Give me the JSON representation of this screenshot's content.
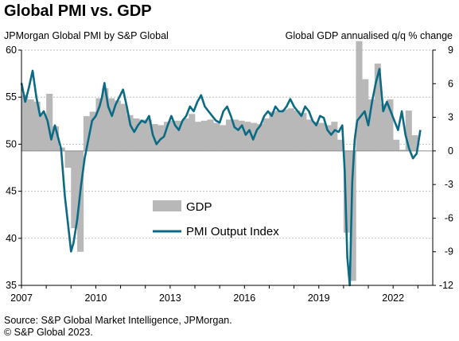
{
  "header": {
    "title": "Global PMI vs. GDP",
    "left_axis_label": "JPMorgan Global PMI by S&P Global",
    "right_axis_label": "Global GDP annualised q/q % change"
  },
  "footer": {
    "source_line1": "Source: S&P Global Market Intelligence, JPMorgan.",
    "source_line2": "© S&P Global 2023."
  },
  "chart_data": {
    "type": "bar+line",
    "title": "Global PMI vs. GDP",
    "xlabel": "",
    "ylabel_left": "JPMorgan Global PMI by S&P Global",
    "ylabel_right": "Global GDP annualised q/q % change",
    "ylim_left": [
      35,
      60
    ],
    "ylim_right": [
      -12,
      9
    ],
    "xlim": [
      2007.0,
      2023.6
    ],
    "x_ticks": [
      "2007",
      "2010",
      "2013",
      "2016",
      "2019",
      "2022"
    ],
    "y_left_ticks": [
      "35",
      "40",
      "45",
      "50",
      "55",
      "60"
    ],
    "y_right_ticks": [
      "-12",
      "-9",
      "-6",
      "-3",
      "0",
      "3",
      "6",
      "9"
    ],
    "legend": {
      "placement": "center",
      "entries": [
        "GDP",
        "PMI Output Index"
      ]
    },
    "colors": {
      "gdp": "#b8b8b8",
      "pmi": "#0b6b85",
      "grid": "#bfbfbf",
      "axis": "#000000"
    },
    "series": [
      {
        "name": "GDP",
        "type": "bar",
        "axis": "right",
        "x": [
          2007.0,
          2007.25,
          2007.5,
          2007.75,
          2008.0,
          2008.25,
          2008.5,
          2008.75,
          2009.0,
          2009.25,
          2009.5,
          2009.75,
          2010.0,
          2010.25,
          2010.5,
          2010.75,
          2011.0,
          2011.25,
          2011.5,
          2011.75,
          2012.0,
          2012.25,
          2012.5,
          2012.75,
          2013.0,
          2013.25,
          2013.5,
          2013.75,
          2014.0,
          2014.25,
          2014.5,
          2014.75,
          2015.0,
          2015.25,
          2015.5,
          2015.75,
          2016.0,
          2016.25,
          2016.5,
          2016.75,
          2017.0,
          2017.25,
          2017.5,
          2017.75,
          2018.0,
          2018.25,
          2018.5,
          2018.75,
          2019.0,
          2019.25,
          2019.5,
          2019.75,
          2020.0,
          2020.25,
          2020.5,
          2020.75,
          2021.0,
          2021.25,
          2021.5,
          2021.75,
          2022.0,
          2022.25,
          2022.5,
          2022.75
        ],
        "values": [
          5.0,
          4.6,
          4.4,
          3.3,
          5.1,
          2.2,
          0.3,
          -1.5,
          -6.9,
          -9.0,
          3.1,
          3.5,
          4.7,
          5.6,
          4.7,
          4.5,
          4.2,
          3.2,
          2.9,
          2.8,
          2.8,
          2.4,
          2.3,
          2.6,
          2.7,
          2.7,
          2.9,
          3.3,
          2.6,
          2.7,
          2.8,
          2.5,
          2.3,
          2.8,
          2.8,
          2.7,
          2.6,
          2.5,
          2.4,
          2.9,
          3.5,
          3.6,
          3.7,
          3.8,
          3.6,
          3.4,
          2.8,
          2.6,
          2.5,
          2.3,
          2.6,
          1.0,
          -7.3,
          -11.6,
          9.8,
          6.4,
          4.6,
          7.8,
          4.2,
          4.6,
          1.0,
          0.1,
          3.6,
          1.4
        ]
      },
      {
        "name": "PMI Output Index",
        "type": "line",
        "axis": "left",
        "x": [
          2007.0,
          2007.15,
          2007.3,
          2007.45,
          2007.6,
          2007.75,
          2007.9,
          2008.05,
          2008.2,
          2008.35,
          2008.5,
          2008.6,
          2008.75,
          2008.9,
          2009.0,
          2009.1,
          2009.25,
          2009.4,
          2009.55,
          2009.7,
          2009.85,
          2010.0,
          2010.15,
          2010.25,
          2010.35,
          2010.5,
          2010.65,
          2010.8,
          2010.95,
          2011.1,
          2011.25,
          2011.4,
          2011.55,
          2011.7,
          2011.85,
          2012.0,
          2012.15,
          2012.3,
          2012.45,
          2012.6,
          2012.75,
          2012.9,
          2013.05,
          2013.2,
          2013.35,
          2013.5,
          2013.65,
          2013.8,
          2013.95,
          2014.1,
          2014.25,
          2014.4,
          2014.55,
          2014.7,
          2014.85,
          2015.0,
          2015.15,
          2015.3,
          2015.45,
          2015.6,
          2015.75,
          2015.9,
          2016.05,
          2016.2,
          2016.35,
          2016.5,
          2016.65,
          2016.8,
          2016.95,
          2017.1,
          2017.25,
          2017.4,
          2017.55,
          2017.7,
          2017.85,
          2018.0,
          2018.15,
          2018.3,
          2018.45,
          2018.6,
          2018.75,
          2018.9,
          2019.05,
          2019.2,
          2019.35,
          2019.5,
          2019.65,
          2019.8,
          2019.95,
          2020.05,
          2020.15,
          2020.25,
          2020.35,
          2020.45,
          2020.55,
          2020.7,
          2020.85,
          2021.0,
          2021.15,
          2021.3,
          2021.45,
          2021.6,
          2021.75,
          2021.9,
          2022.05,
          2022.2,
          2022.35,
          2022.5,
          2022.65,
          2022.8,
          2022.95,
          2023.1
        ],
        "values": [
          56.5,
          54.5,
          56.0,
          57.8,
          55.0,
          53.0,
          53.5,
          52.5,
          50.5,
          52.0,
          50.5,
          49.5,
          44.5,
          41.0,
          38.6,
          39.5,
          42.0,
          45.5,
          48.5,
          50.5,
          52.5,
          53.0,
          54.0,
          55.0,
          56.5,
          54.0,
          53.0,
          54.2,
          55.0,
          55.8,
          54.0,
          52.0,
          51.3,
          52.0,
          52.5,
          52.3,
          53.0,
          51.0,
          50.0,
          50.5,
          50.8,
          52.0,
          53.0,
          52.0,
          51.5,
          52.5,
          53.0,
          54.0,
          53.5,
          54.5,
          55.2,
          54.0,
          53.5,
          53.0,
          52.5,
          52.3,
          53.5,
          54.0,
          53.0,
          51.8,
          51.5,
          52.0,
          51.0,
          51.5,
          50.5,
          51.5,
          52.0,
          53.0,
          53.5,
          53.0,
          54.0,
          53.5,
          53.5,
          54.0,
          54.8,
          54.0,
          53.5,
          53.0,
          54.0,
          53.5,
          52.5,
          52.0,
          53.0,
          52.8,
          51.5,
          51.0,
          51.5,
          51.3,
          52.0,
          47.0,
          38.0,
          35.0,
          46.0,
          50.5,
          52.5,
          53.0,
          53.5,
          52.0,
          54.5,
          56.5,
          58.0,
          53.5,
          54.5,
          53.5,
          52.5,
          51.5,
          53.5,
          51.0,
          49.5,
          48.5,
          49.0,
          51.5
        ]
      }
    ]
  }
}
